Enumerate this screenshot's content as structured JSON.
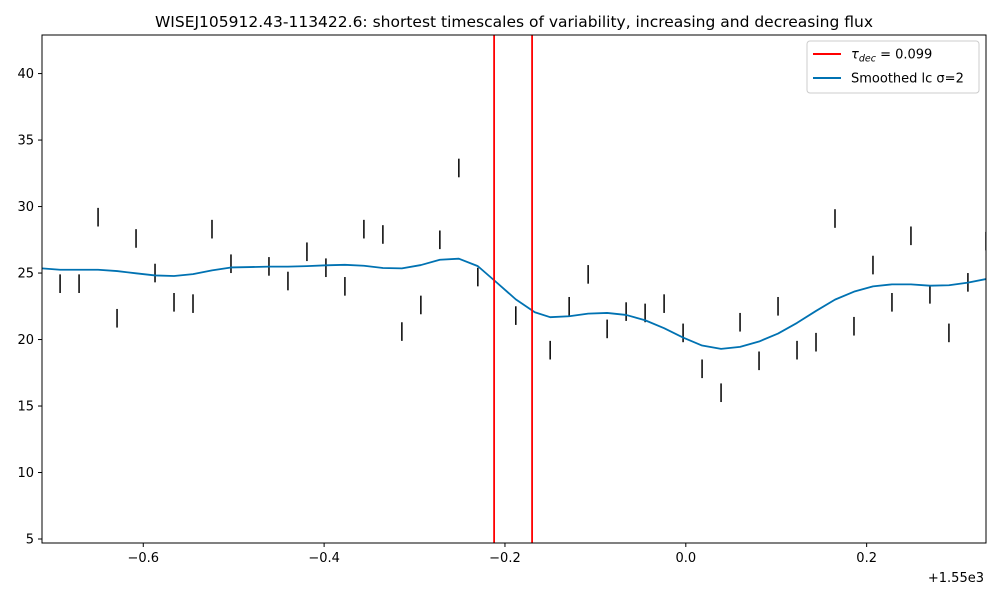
{
  "chart_data": {
    "type": "line",
    "title": "WISEJ105912.43-113422.6: shortest timescales of variability, increasing and decreasing flux",
    "xlabel": "",
    "ylabel": "",
    "x_offset_label": "+1.55e3",
    "xlim": [
      -0.712,
      0.332
    ],
    "ylim": [
      4.7,
      42.9
    ],
    "x_ticks": [
      -0.6,
      -0.4,
      -0.2,
      0.0,
      0.2
    ],
    "x_tick_labels": [
      "−0.6",
      "−0.4",
      "−0.2",
      "0.0",
      "0.2"
    ],
    "y_ticks": [
      5,
      10,
      15,
      20,
      25,
      30,
      35,
      40
    ],
    "y_tick_labels": [
      "5",
      "10",
      "15",
      "20",
      "25",
      "30",
      "35",
      "40"
    ],
    "grid": false,
    "legend_position": "upper right",
    "legend": [
      {
        "label_main": "τ",
        "label_sub": "dec",
        "label_rest": " = 0.099",
        "color": "#ff0000",
        "kind": "line"
      },
      {
        "label_main": "Smoothed lc σ=2",
        "label_sub": "",
        "label_rest": "",
        "color": "#0072b2",
        "kind": "line"
      }
    ],
    "vlines": {
      "color": "#ff0000",
      "x": [
        -0.212,
        -0.17
      ]
    },
    "error_bars": {
      "color": "#000000",
      "points": [
        {
          "x": -0.692,
          "lo": 23.5,
          "hi": 24.9
        },
        {
          "x": -0.671,
          "lo": 23.5,
          "hi": 24.9
        },
        {
          "x": -0.65,
          "lo": 28.5,
          "hi": 29.9
        },
        {
          "x": -0.629,
          "lo": 20.9,
          "hi": 22.3
        },
        {
          "x": -0.608,
          "lo": 26.9,
          "hi": 28.3
        },
        {
          "x": -0.587,
          "lo": 24.3,
          "hi": 25.7
        },
        {
          "x": -0.566,
          "lo": 22.1,
          "hi": 23.5
        },
        {
          "x": -0.545,
          "lo": 22.0,
          "hi": 23.4
        },
        {
          "x": -0.524,
          "lo": 27.6,
          "hi": 29.0
        },
        {
          "x": -0.503,
          "lo": 25.0,
          "hi": 26.4
        },
        {
          "x": -0.461,
          "lo": 24.8,
          "hi": 26.2
        },
        {
          "x": -0.44,
          "lo": 23.7,
          "hi": 25.1
        },
        {
          "x": -0.419,
          "lo": 25.9,
          "hi": 27.3
        },
        {
          "x": -0.398,
          "lo": 24.7,
          "hi": 26.1
        },
        {
          "x": -0.377,
          "lo": 23.3,
          "hi": 24.7
        },
        {
          "x": -0.356,
          "lo": 27.6,
          "hi": 29.0
        },
        {
          "x": -0.335,
          "lo": 27.2,
          "hi": 28.6
        },
        {
          "x": -0.314,
          "lo": 19.9,
          "hi": 21.3
        },
        {
          "x": -0.293,
          "lo": 21.9,
          "hi": 23.3
        },
        {
          "x": -0.272,
          "lo": 26.8,
          "hi": 28.2
        },
        {
          "x": -0.251,
          "lo": 32.2,
          "hi": 33.6
        },
        {
          "x": -0.23,
          "lo": 24.0,
          "hi": 25.4
        },
        {
          "x": -0.188,
          "lo": 21.1,
          "hi": 22.5
        },
        {
          "x": -0.15,
          "lo": 18.5,
          "hi": 19.9
        },
        {
          "x": -0.129,
          "lo": 21.8,
          "hi": 23.2
        },
        {
          "x": -0.108,
          "lo": 24.2,
          "hi": 25.6
        },
        {
          "x": -0.087,
          "lo": 20.1,
          "hi": 21.5
        },
        {
          "x": -0.066,
          "lo": 21.4,
          "hi": 22.8
        },
        {
          "x": -0.045,
          "lo": 21.3,
          "hi": 22.7
        },
        {
          "x": -0.024,
          "lo": 22.0,
          "hi": 23.4
        },
        {
          "x": -0.003,
          "lo": 19.8,
          "hi": 21.2
        },
        {
          "x": 0.018,
          "lo": 17.1,
          "hi": 18.5
        },
        {
          "x": 0.039,
          "lo": 15.3,
          "hi": 16.7
        },
        {
          "x": 0.06,
          "lo": 20.6,
          "hi": 22.0
        },
        {
          "x": 0.081,
          "lo": 17.7,
          "hi": 19.1
        },
        {
          "x": 0.102,
          "lo": 21.8,
          "hi": 23.2
        },
        {
          "x": 0.123,
          "lo": 18.5,
          "hi": 19.9
        },
        {
          "x": 0.144,
          "lo": 19.1,
          "hi": 20.5
        },
        {
          "x": 0.165,
          "lo": 28.4,
          "hi": 29.8
        },
        {
          "x": 0.186,
          "lo": 20.3,
          "hi": 21.7
        },
        {
          "x": 0.207,
          "lo": 24.9,
          "hi": 26.3
        },
        {
          "x": 0.228,
          "lo": 22.1,
          "hi": 23.5
        },
        {
          "x": 0.249,
          "lo": 27.1,
          "hi": 28.5
        },
        {
          "x": 0.27,
          "lo": 22.7,
          "hi": 24.1
        },
        {
          "x": 0.291,
          "lo": 19.8,
          "hi": 21.2
        },
        {
          "x": 0.312,
          "lo": 23.6,
          "hi": 25.0
        },
        {
          "x": 0.332,
          "lo": 26.7,
          "hi": 28.1
        }
      ]
    },
    "series": [
      {
        "name": "Smoothed lc σ=2",
        "color": "#0072b2",
        "x": [
          -0.712,
          -0.692,
          -0.671,
          -0.65,
          -0.629,
          -0.608,
          -0.587,
          -0.566,
          -0.545,
          -0.524,
          -0.503,
          -0.482,
          -0.461,
          -0.44,
          -0.419,
          -0.398,
          -0.377,
          -0.356,
          -0.335,
          -0.314,
          -0.293,
          -0.272,
          -0.251,
          -0.23,
          -0.209,
          -0.188,
          -0.167,
          -0.15,
          -0.129,
          -0.108,
          -0.087,
          -0.066,
          -0.045,
          -0.024,
          -0.003,
          0.018,
          0.039,
          0.06,
          0.081,
          0.102,
          0.123,
          0.144,
          0.165,
          0.186,
          0.207,
          0.228,
          0.249,
          0.27,
          0.291,
          0.312,
          0.332
        ],
        "y": [
          25.35,
          25.25,
          25.25,
          25.25,
          25.15,
          24.98,
          24.82,
          24.78,
          24.92,
          25.2,
          25.42,
          25.45,
          25.48,
          25.48,
          25.52,
          25.58,
          25.62,
          25.55,
          25.38,
          25.35,
          25.6,
          26.0,
          26.08,
          25.52,
          24.28,
          23.02,
          22.05,
          21.68,
          21.75,
          21.95,
          22.0,
          21.85,
          21.45,
          20.85,
          20.15,
          19.55,
          19.3,
          19.45,
          19.85,
          20.45,
          21.25,
          22.15,
          23.0,
          23.6,
          24.0,
          24.15,
          24.15,
          24.05,
          24.08,
          24.28,
          24.55
        ]
      }
    ]
  }
}
